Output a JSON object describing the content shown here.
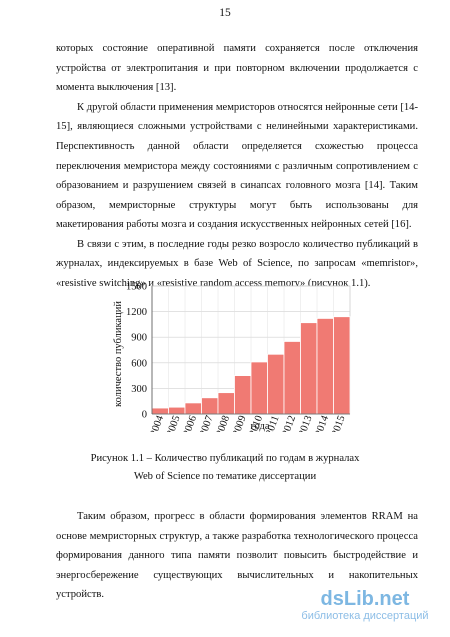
{
  "page_number": "15",
  "para1": [
    "которых состояние оперативной памяти сохраняется после отключения",
    "устройства от электропитания и при повторном включении продолжается с",
    "момента выключения [13]."
  ],
  "para2": [
    "К другой области применения мемристоров относятся нейронные сети [14-",
    "15], являющиеся сложными устройствами с нелинейными характеристиками.",
    "Перспективность данной области определяется схожестью процесса",
    "переключения мемристора между состояниями с различным сопротивлением с",
    "образованием и разрушением связей в синапсах головного мозга [14]. Таким",
    "образом, мемристорные структуры могут быть использованы для",
    "макетирования работы мозга и создания искусственных нейронных сетей [16]."
  ],
  "para3": [
    "В связи с этим, в последние годы резко возросло количество публикаций в",
    "журналах, индексируемых в базе Web of Science, по запросам «memristor»,",
    "«resistive switching» и «resistive random access memory» (рисунок 1.1)."
  ],
  "chart_data": {
    "type": "bar",
    "categories": [
      "2004",
      "2005",
      "2006",
      "2007",
      "2008",
      "2009",
      "2010",
      "2011",
      "2012",
      "2013",
      "2014",
      "2015"
    ],
    "values": [
      70,
      80,
      130,
      190,
      250,
      450,
      610,
      700,
      850,
      1070,
      1120,
      1140
    ],
    "xlabel": "года",
    "ylabel": "количество публикаций",
    "ylim": [
      0,
      1500
    ],
    "yticks": [
      0,
      300,
      600,
      900,
      1200,
      1500
    ],
    "bar_color": "#f07a73",
    "grid": true
  },
  "caption": [
    "Рисунок 1.1 – Количество публикаций по годам в журналах",
    "Web of Science по тематике диссертации"
  ],
  "para4": [
    "Таким образом, прогресс в области формирования элементов RRAM на",
    "основе мемристорных структур, а также разработка технологического процесса",
    "формирования данного типа памяти позволит повысить быстродействие и",
    "энергосбережение существующих вычислительных и накопительных",
    "устройств."
  ],
  "watermark": {
    "logo": "dsLib.net",
    "subtitle": "библиотека диссертаций"
  }
}
